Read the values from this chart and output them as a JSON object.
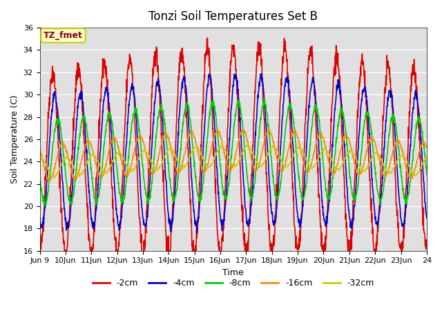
{
  "title": "Tonzi Soil Temperatures Set B",
  "xlabel": "Time",
  "ylabel": "Soil Temperature (C)",
  "ylim": [
    16,
    36
  ],
  "annotation": "TZ_fmet",
  "bg_color": "#e0e0e0",
  "fig_bg": "#ffffff",
  "series": [
    {
      "label": "-2cm",
      "color": "#dd0000",
      "amplitude": 7.5,
      "phase": 0.0,
      "mean": 23.5,
      "noise": 0.5,
      "amp_grow": 1.8
    },
    {
      "label": "-4cm",
      "color": "#0000cc",
      "amplitude": 5.5,
      "phase": 0.08,
      "mean": 23.5,
      "noise": 0.2,
      "amp_grow": 1.2
    },
    {
      "label": "-8cm",
      "color": "#00cc00",
      "amplitude": 3.5,
      "phase": 0.2,
      "mean": 23.5,
      "noise": 0.15,
      "amp_grow": 0.8
    },
    {
      "label": "-16cm",
      "color": "#ff8800",
      "amplitude": 1.5,
      "phase": 0.38,
      "mean": 23.5,
      "noise": 0.08,
      "amp_grow": 0.3
    },
    {
      "label": "-32cm",
      "color": "#cccc00",
      "amplitude": 0.8,
      "phase": 0.55,
      "mean": 23.0,
      "noise": 0.04,
      "amp_grow": 0.1
    }
  ],
  "linewidth": 1.2,
  "legend_ncol": 5
}
